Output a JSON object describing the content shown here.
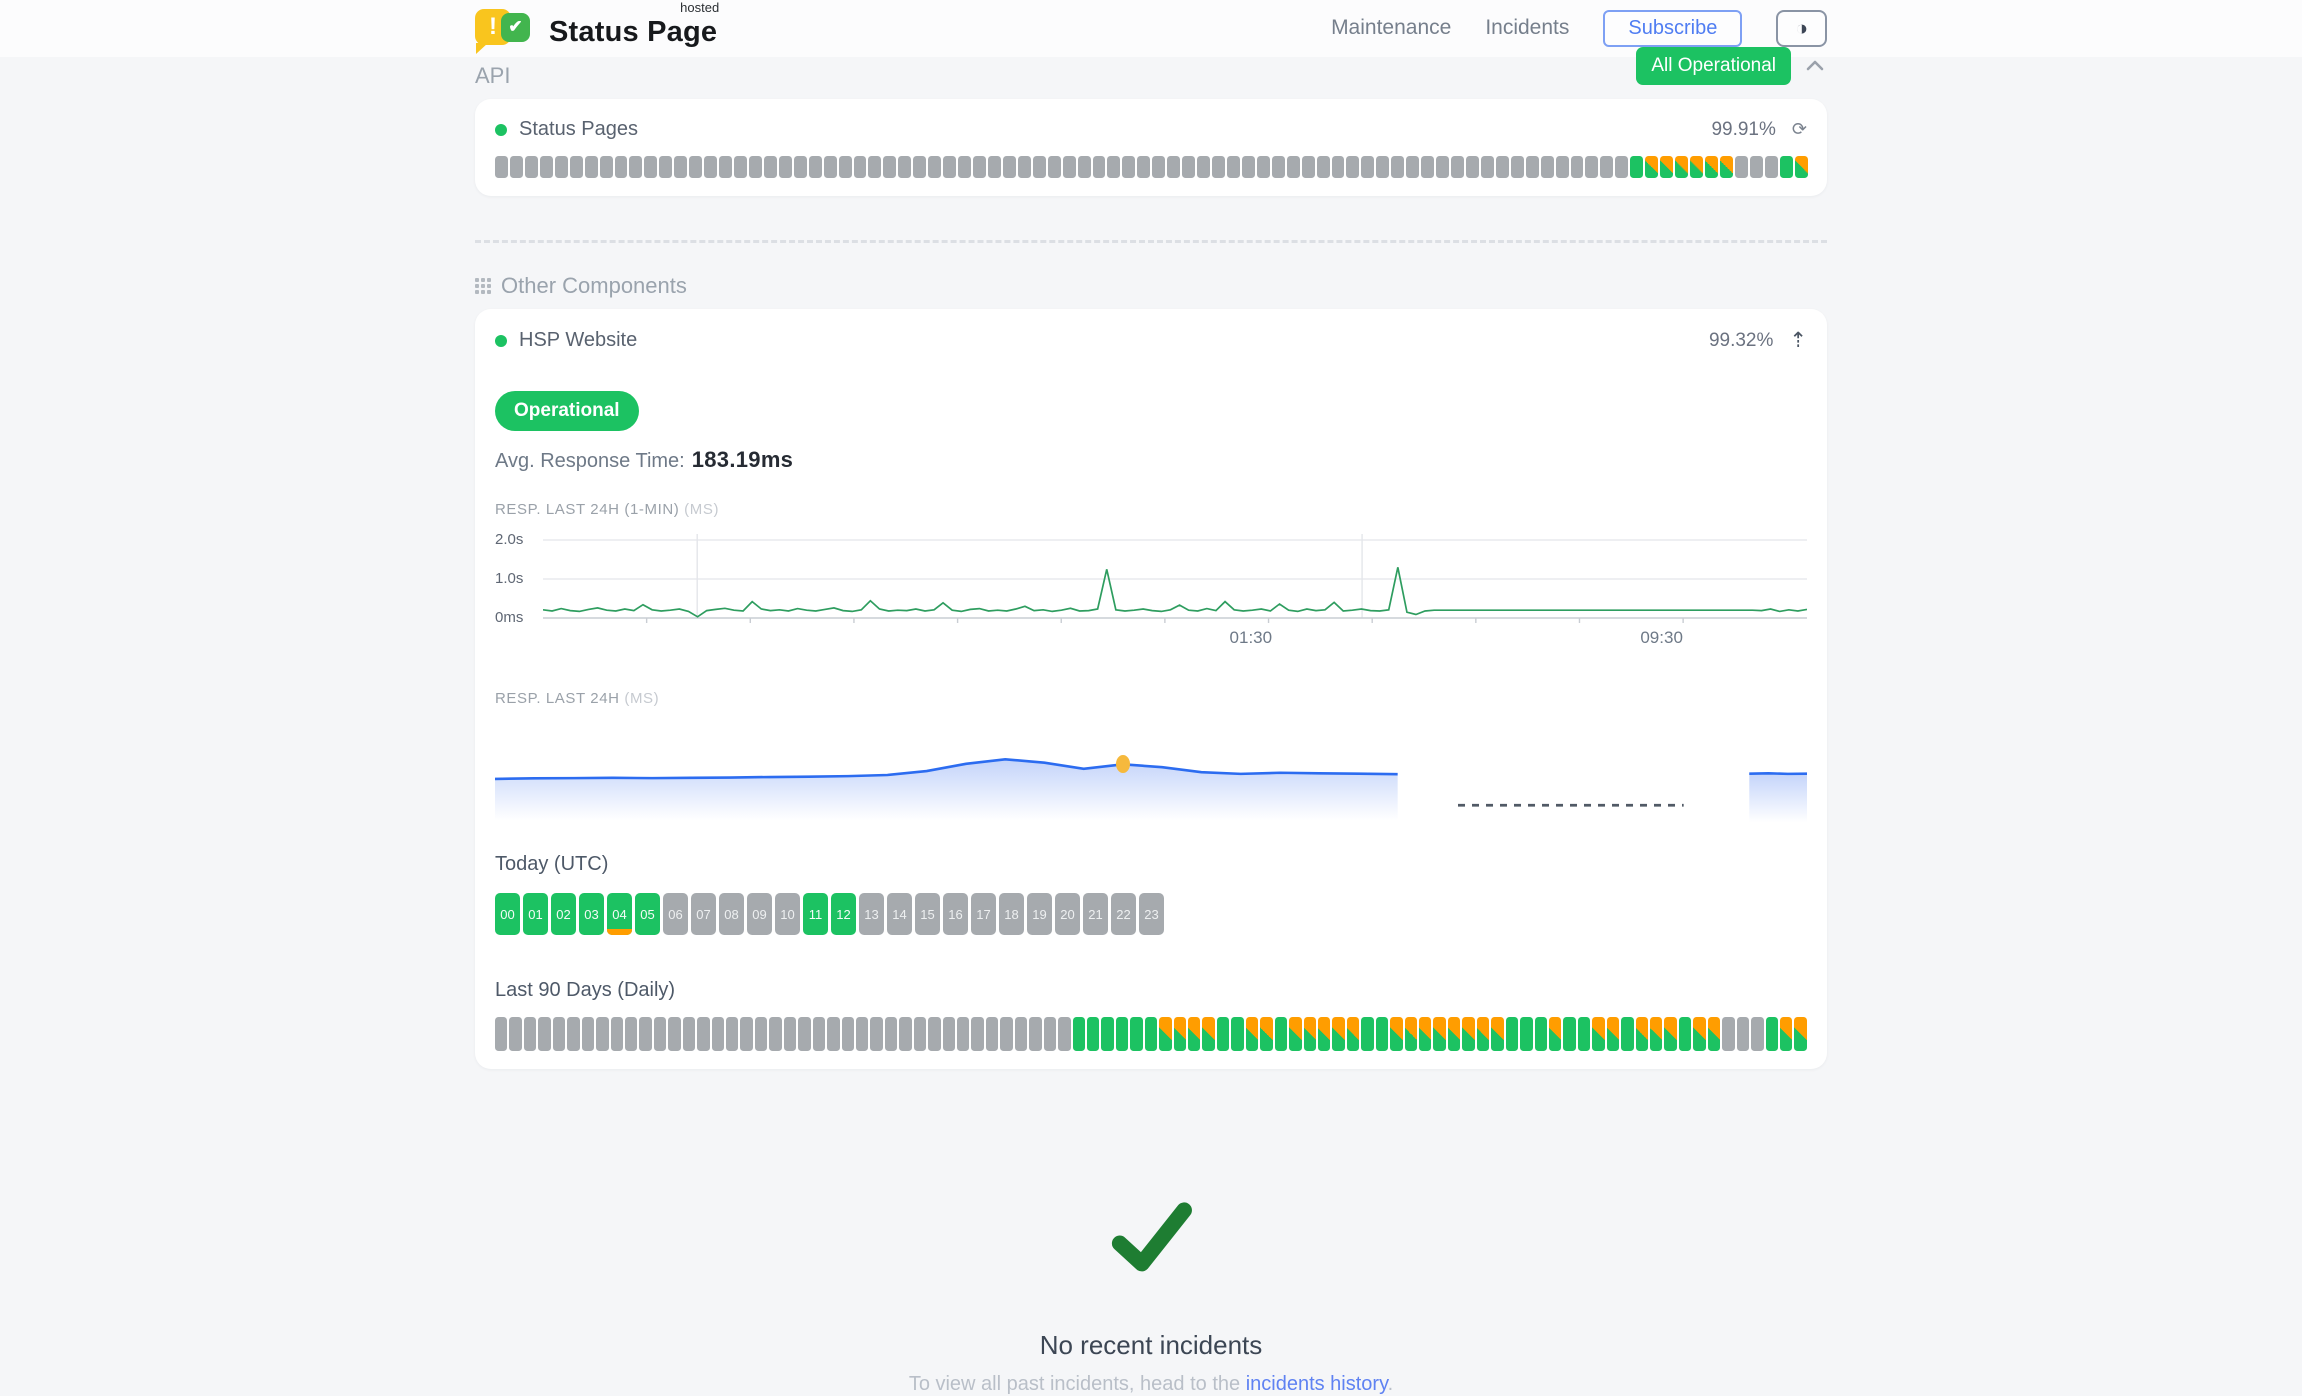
{
  "header": {
    "brand": {
      "name": "Status Page",
      "superscript": "hosted",
      "check_glyph": "✔",
      "exclaim_glyph": "!"
    },
    "nav": [
      {
        "label": "Maintenance"
      },
      {
        "label": "Incidents"
      }
    ],
    "subscribe_label": "Subscribe",
    "theme_icon_glyph": "◑",
    "status_badge": "All Operational"
  },
  "sections": {
    "api": {
      "title": "API",
      "component": {
        "name": "Status Pages",
        "uptime": "99.91%"
      },
      "refresh_icon_glyph": "⟳",
      "bars": "nnnnnnnnnnnnnnnnnnnnnnnnnnnnnnnnnnnnnnnnnnnnnnnnnnnnnnnnnnnnnnnnnnnnnnnnnnnnuddddddnnnud"
    },
    "other": {
      "title": "Other Components",
      "component": {
        "name": "HSP Website",
        "uptime": "99.32%"
      },
      "expand_icon_glyph": "⇡",
      "status_label": "Operational",
      "avg_label": "Avg. Response Time:",
      "avg_value": "183.19ms",
      "chart1_label": "RESP. LAST 24H (1-MIN)",
      "chart1_unit": "(MS)",
      "chart2_label": "RESP. LAST 24H",
      "chart2_unit": "(MS)",
      "today_label": "Today (UTC)",
      "hours": [
        {
          "label": "00",
          "status": "u"
        },
        {
          "label": "01",
          "status": "u"
        },
        {
          "label": "02",
          "status": "u"
        },
        {
          "label": "03",
          "status": "u"
        },
        {
          "label": "04",
          "status": "ud"
        },
        {
          "label": "05",
          "status": "u"
        },
        {
          "label": "06",
          "status": "n"
        },
        {
          "label": "07",
          "status": "n"
        },
        {
          "label": "08",
          "status": "n"
        },
        {
          "label": "09",
          "status": "n"
        },
        {
          "label": "10",
          "status": "n"
        },
        {
          "label": "11",
          "status": "u"
        },
        {
          "label": "12",
          "status": "u"
        },
        {
          "label": "13",
          "status": "n"
        },
        {
          "label": "14",
          "status": "n"
        },
        {
          "label": "15",
          "status": "n"
        },
        {
          "label": "16",
          "status": "n"
        },
        {
          "label": "17",
          "status": "n"
        },
        {
          "label": "18",
          "status": "n"
        },
        {
          "label": "19",
          "status": "n"
        },
        {
          "label": "20",
          "status": "n"
        },
        {
          "label": "21",
          "status": "n"
        },
        {
          "label": "22",
          "status": "n"
        },
        {
          "label": "23",
          "status": "n"
        }
      ],
      "days_label": "Last 90 Days (Daily)",
      "days": "nnnnnnnnnnnnnnnnnnnnnnnnnnnnnnnnnnnnnnnnuuuuuudddduudduddddduudddddddduuuduudduddduddnnnudd"
    }
  },
  "incidents": {
    "title": "No recent incidents",
    "subtitle_prefix": "To view all past incidents, head to the ",
    "link_label": "incidents history",
    "subtitle_suffix": "."
  },
  "chart_data": [
    {
      "type": "line",
      "title": "RESP. LAST 24H (1-MIN)",
      "unit": "MS",
      "ylim": [
        0,
        2100
      ],
      "ylabel_ticks": [
        {
          "label": "2.0s",
          "value": 2000
        },
        {
          "label": "1.0s",
          "value": 1000
        },
        {
          "label": "0ms",
          "value": 0
        }
      ],
      "x_ticks": [
        {
          "label": "01:30",
          "x_pct": 56
        },
        {
          "label": "09:30",
          "x_pct": 88.5
        }
      ],
      "v_gridlines_pct": [
        12.2,
        64.8
      ],
      "values": [
        210,
        180,
        240,
        190,
        170,
        220,
        260,
        200,
        180,
        230,
        190,
        340,
        210,
        180,
        200,
        230,
        170,
        30,
        190,
        220,
        250,
        200,
        180,
        420,
        230,
        190,
        210,
        180,
        240,
        200,
        180,
        220,
        260,
        190,
        170,
        210,
        440,
        230,
        180,
        200,
        190,
        230,
        180,
        210,
        390,
        200,
        170,
        220,
        240,
        180,
        200,
        180,
        230,
        300,
        190,
        210,
        170,
        200,
        250,
        180,
        190,
        230,
        1250,
        210,
        180,
        200,
        230,
        190,
        170,
        210,
        330,
        200,
        180,
        240,
        190,
        420,
        210,
        180,
        200,
        230,
        180,
        360,
        200,
        170,
        230,
        190,
        210,
        400,
        180,
        200,
        230,
        190,
        180,
        210,
        1300,
        150,
        90,
        180,
        200,
        200,
        200,
        200,
        200,
        200,
        200,
        200,
        200,
        200,
        200,
        200,
        200,
        200,
        200,
        200,
        200,
        200,
        200,
        200,
        200,
        200,
        200,
        200,
        200,
        200,
        200,
        200,
        200,
        200,
        200,
        200,
        200,
        200,
        200,
        200,
        190,
        230,
        170,
        210,
        180,
        220
      ]
    },
    {
      "type": "area",
      "title": "RESP. LAST 24H",
      "unit": "MS",
      "ylim": [
        0,
        400
      ],
      "marker": {
        "segment": 0,
        "index": 16
      },
      "gap_dash": {
        "x_start_pct": 73.4,
        "x_end_pct": 90.6,
        "y_pct": 77
      },
      "segments": [
        {
          "x_start_pct": 0,
          "x_end_pct": 68.8,
          "values": [
            186,
            188,
            189,
            190,
            189,
            190,
            191,
            193,
            194,
            196,
            200,
            214,
            240,
            256,
            244,
            222,
            238,
            228,
            210,
            204,
            208,
            206,
            205,
            203
          ]
        },
        {
          "x_start_pct": 95.6,
          "x_end_pct": 100,
          "values": [
            205,
            206,
            204,
            205
          ]
        }
      ]
    }
  ],
  "colors": {
    "status_up": "#1cc262",
    "status_degraded": "#ff9d00",
    "status_none": "#a6aaae",
    "accent_blue": "#4f7df2",
    "chart_line_green": "#2e9d5f",
    "chart_line_blue": "#2c6cf0",
    "marker_yellow": "#f6b93d",
    "check_green": "#1e7d32",
    "dash_gap_gray": "#515a66"
  }
}
